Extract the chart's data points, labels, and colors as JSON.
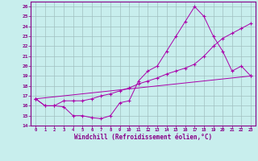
{
  "title": "",
  "xlabel": "Windchill (Refroidissement éolien,°C)",
  "ylabel": "",
  "xlim": [
    -0.5,
    23.5
  ],
  "ylim": [
    14,
    26.5
  ],
  "xticks": [
    0,
    1,
    2,
    3,
    4,
    5,
    6,
    7,
    8,
    9,
    10,
    11,
    12,
    13,
    14,
    15,
    16,
    17,
    18,
    19,
    20,
    21,
    22,
    23
  ],
  "yticks": [
    14,
    15,
    16,
    17,
    18,
    19,
    20,
    21,
    22,
    23,
    24,
    25,
    26
  ],
  "bg_color": "#c8eeed",
  "grid_color": "#a0bfc0",
  "line_color": "#aa00aa",
  "line1_x": [
    0,
    1,
    2,
    3,
    4,
    5,
    6,
    7,
    8,
    9,
    10,
    11,
    12,
    13,
    14,
    15,
    16,
    17,
    18,
    19,
    20,
    21,
    22,
    23
  ],
  "line1_y": [
    16.7,
    16.0,
    16.0,
    15.9,
    15.0,
    15.0,
    14.8,
    14.7,
    15.0,
    16.3,
    16.5,
    18.5,
    19.5,
    20.0,
    21.5,
    23.0,
    24.5,
    26.0,
    25.0,
    23.0,
    21.5,
    19.5,
    20.0,
    19.0
  ],
  "line2_x": [
    0,
    1,
    2,
    3,
    4,
    5,
    6,
    7,
    8,
    9,
    10,
    11,
    12,
    13,
    14,
    15,
    16,
    17,
    18,
    19,
    20,
    21,
    22,
    23
  ],
  "line2_y": [
    16.7,
    16.0,
    16.0,
    16.5,
    16.5,
    16.5,
    16.7,
    17.0,
    17.2,
    17.5,
    17.8,
    18.2,
    18.5,
    18.8,
    19.2,
    19.5,
    19.8,
    20.2,
    21.0,
    22.0,
    22.8,
    23.3,
    23.8,
    24.3
  ],
  "line3_x": [
    0,
    23
  ],
  "line3_y": [
    16.7,
    19.0
  ],
  "figsize": [
    3.2,
    2.0
  ],
  "dpi": 100
}
